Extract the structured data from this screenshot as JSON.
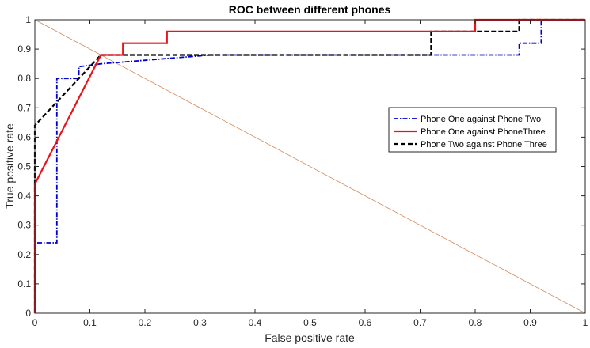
{
  "chart_data": {
    "type": "line",
    "title": "ROC between different phones",
    "xlabel": "False positive rate",
    "ylabel": "True positive rate",
    "xlim": [
      0,
      1
    ],
    "ylim": [
      0,
      1
    ],
    "xticks": [
      0,
      0.1,
      0.2,
      0.3,
      0.4,
      0.5,
      0.6,
      0.7,
      0.8,
      0.9,
      1
    ],
    "yticks": [
      0,
      0.1,
      0.2,
      0.3,
      0.4,
      0.5,
      0.6,
      0.7,
      0.8,
      0.9,
      1
    ],
    "xtick_labels": [
      "0",
      "0.1",
      "0.2",
      "0.3",
      "0.4",
      "0.5",
      "0.6",
      "0.7",
      "0.8",
      "0.9",
      "1"
    ],
    "ytick_labels": [
      "0",
      "0.1",
      "0.2",
      "0.3",
      "0.4",
      "0.5",
      "0.6",
      "0.7",
      "0.8",
      "0.9",
      "1"
    ],
    "grid": false,
    "legend_position": "right",
    "series": [
      {
        "name": "Phone One against Phone Two",
        "color": "#0000CC",
        "style": "dashdot",
        "x": [
          0,
          0,
          0.04,
          0.04,
          0.08,
          0.08,
          0.12,
          0.32,
          0.88,
          0.88,
          0.92,
          0.92,
          1
        ],
        "y": [
          0,
          0.24,
          0.24,
          0.8,
          0.8,
          0.84,
          0.85,
          0.88,
          0.88,
          0.92,
          0.92,
          1,
          1
        ]
      },
      {
        "name": "Phone One against PhoneThree",
        "color": "#E8141C",
        "style": "solid",
        "x": [
          0,
          0,
          0.12,
          0.16,
          0.16,
          0.24,
          0.24,
          0.8,
          0.8,
          1
        ],
        "y": [
          0,
          0.44,
          0.88,
          0.88,
          0.92,
          0.92,
          0.96,
          0.96,
          1,
          1
        ]
      },
      {
        "name": "Phone Two against Phone Three",
        "color": "#000000",
        "style": "dashed",
        "x": [
          0,
          0,
          0.12,
          0.32,
          0.72,
          0.72,
          0.88,
          0.88,
          1
        ],
        "y": [
          0,
          0.64,
          0.88,
          0.88,
          0.88,
          0.96,
          0.96,
          1,
          1
        ]
      },
      {
        "name": "",
        "color": "#D2875A",
        "style": "thin",
        "x": [
          0,
          1
        ],
        "y": [
          1,
          0
        ]
      }
    ]
  }
}
